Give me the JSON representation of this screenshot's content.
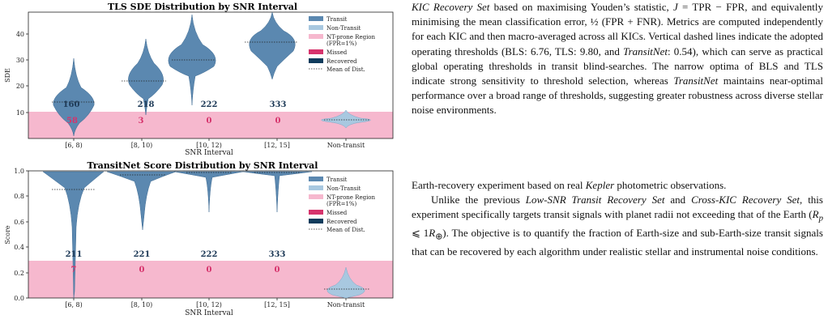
{
  "charts": [
    {
      "title": "TLS SDE Distribution by SNR Interval",
      "ylabel": "SDE",
      "xlabel": "SNR Interval",
      "categories": [
        "[6, 8)",
        "[8, 10)",
        "[10, 12)",
        "[12, 15]",
        "Non-transit"
      ],
      "yticks": [
        "10",
        "20",
        "30",
        "40"
      ],
      "recovered_counts": [
        "160",
        "218",
        "222",
        "333"
      ],
      "missed_counts": [
        "58",
        "3",
        "0",
        "0"
      ],
      "legend": [
        "Transit",
        "Non-Transit",
        "NT-prone Region",
        "(FPR=1%)",
        "Missed",
        "Recovered",
        "Mean of Dist."
      ]
    },
    {
      "title": "TransitNet Score Distribution by SNR Interval",
      "ylabel": "Score",
      "xlabel": "SNR Interval",
      "categories": [
        "[6, 8)",
        "[8, 10)",
        "[10, 12)",
        "[12, 15]",
        "Non-transit"
      ],
      "yticks": [
        "0.0",
        "0.2",
        "0.4",
        "0.6",
        "0.8",
        "1.0"
      ],
      "recovered_counts": [
        "211",
        "221",
        "222",
        "333"
      ],
      "missed_counts": [
        "7",
        "0",
        "0",
        "0"
      ],
      "legend": [
        "Transit",
        "Non-Transit",
        "NT-prone Region",
        "(FPR=1%)",
        "Missed",
        "Recovered",
        "Mean of Dist."
      ]
    }
  ],
  "chart_data": [
    {
      "type": "violin",
      "title": "TLS SDE Distribution by SNR Interval",
      "xlabel": "SNR Interval",
      "ylabel": "SDE",
      "categories": [
        "[6, 8)",
        "[8, 10)",
        "[10, 12)",
        "[12, 15]",
        "Non-transit"
      ],
      "ylim": [
        0,
        48
      ],
      "nt_prone_threshold": 10.3,
      "means": [
        13.8,
        21.8,
        29.6,
        36.6,
        7.0
      ],
      "recovered": [
        160,
        218,
        222,
        333
      ],
      "missed": [
        58,
        3,
        0,
        0
      ],
      "legend_placement": "top-right"
    },
    {
      "type": "violin",
      "title": "TransitNet Score Distribution by SNR Interval",
      "xlabel": "SNR Interval",
      "ylabel": "Score",
      "categories": [
        "[6, 8)",
        "[8, 10)",
        "[10, 12)",
        "[12, 15]",
        "Non-transit"
      ],
      "ylim": [
        0,
        1.0
      ],
      "nt_prone_threshold": 0.26,
      "means": [
        0.85,
        0.97,
        0.99,
        0.99,
        0.07
      ],
      "recovered": [
        211,
        221,
        222,
        333
      ],
      "missed": [
        7,
        0,
        0,
        0
      ],
      "legend_placement": "top-right"
    }
  ],
  "text": {
    "p1a": "KIC Recovery Set",
    "p1b": " based on maximising Youden’s statistic, ",
    "p1c": "J",
    "p1d": " = TPR − FPR, and equivalently minimising the mean classification error, ",
    "p1e": "½",
    "p1f": " (FPR + FNR). Metrics are computed independently for each KIC and then macro-averaged across all KICs. Vertical dashed lines indicate the adopted operating thresholds (BLS: 6.76, TLS: 9.80, and ",
    "p1g": "TransitNet",
    "p1h": ": 0.54), which can serve as practical global operating thresholds in transit blind-searches. The narrow optima of BLS and TLS indicate strong sensitivity to threshold selection, whereas ",
    "p1i": "TransitNet",
    "p1j": " maintains near-optimal performance over a broad range of thresholds, suggesting greater robustness across diverse stellar noise environments.",
    "p2a": "Earth-recovery experiment based on real ",
    "p2b": "Kepler",
    "p2c": " photometric observations.",
    "p3a": "Unlike the previous ",
    "p3b": "Low-SNR Transit Recovery Set",
    "p3c": " and ",
    "p3d": "Cross-KIC Recovery Set",
    "p3e": ", this experiment specifically targets transit signals with planet radii not exceeding that of the Earth (",
    "p3f": "R",
    "p3g": "p",
    "p3h": " ⩽ 1",
    "p3i": "R",
    "p3j": "⊕",
    "p3k": "). The objective is to quantify the fraction of Earth-size and sub-Earth-size transit signals that can be recovered by each algorithm under realistic stellar and instrumental noise conditions."
  }
}
